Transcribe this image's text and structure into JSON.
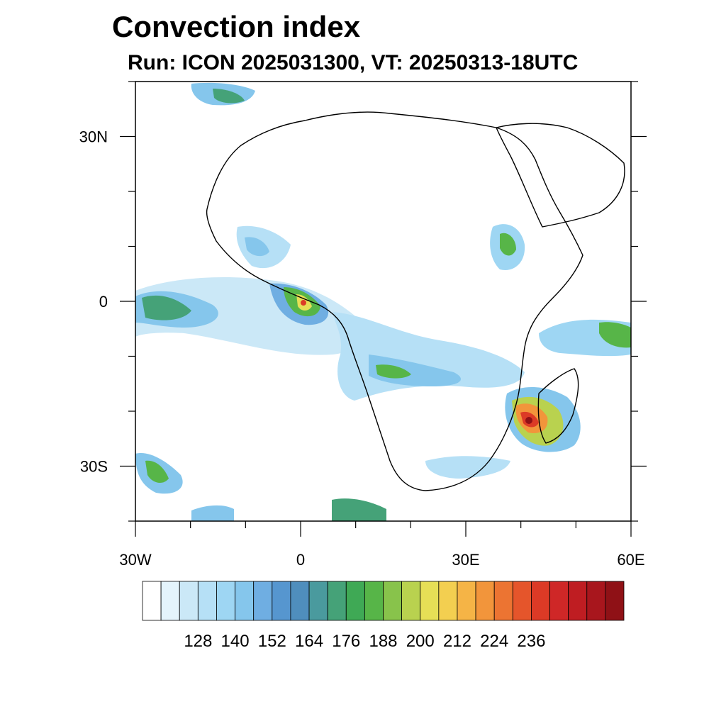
{
  "title": "Convection index",
  "subtitle": "Run: ICON 2025031300,  VT: 20250313-18UTC",
  "map": {
    "extent": {
      "lon_min": -30,
      "lon_max": 60,
      "lat_min": -40,
      "lat_max": 40
    },
    "lon_tick_labels": [
      {
        "lon": -30,
        "label": "30W"
      },
      {
        "lon": 0,
        "label": "0"
      },
      {
        "lon": 30,
        "label": "30E"
      },
      {
        "lon": 60,
        "label": "60E"
      }
    ],
    "lat_tick_labels": [
      {
        "lat": 30,
        "label": "30N"
      },
      {
        "lat": 0,
        "label": "0"
      },
      {
        "lat": -30,
        "label": "30S"
      }
    ]
  },
  "colorbar": {
    "colors": [
      "#ffffff",
      "#e4f4fc",
      "#cbe8f7",
      "#b6e0f6",
      "#9ed6f3",
      "#85c6ec",
      "#6faee2",
      "#5696cf",
      "#4f8ebd",
      "#4a9a9e",
      "#45a278",
      "#3fa955",
      "#57b548",
      "#88c34b",
      "#b9d24f",
      "#e6df56",
      "#f3cf50",
      "#f5b446",
      "#f2953b",
      "#ec7432",
      "#e5552b",
      "#dc3a26",
      "#cf2727",
      "#bf1d22",
      "#a8161d",
      "#8f1116"
    ],
    "labels": [
      "128",
      "140",
      "152",
      "164",
      "176",
      "188",
      "200",
      "212",
      "224",
      "236"
    ]
  }
}
